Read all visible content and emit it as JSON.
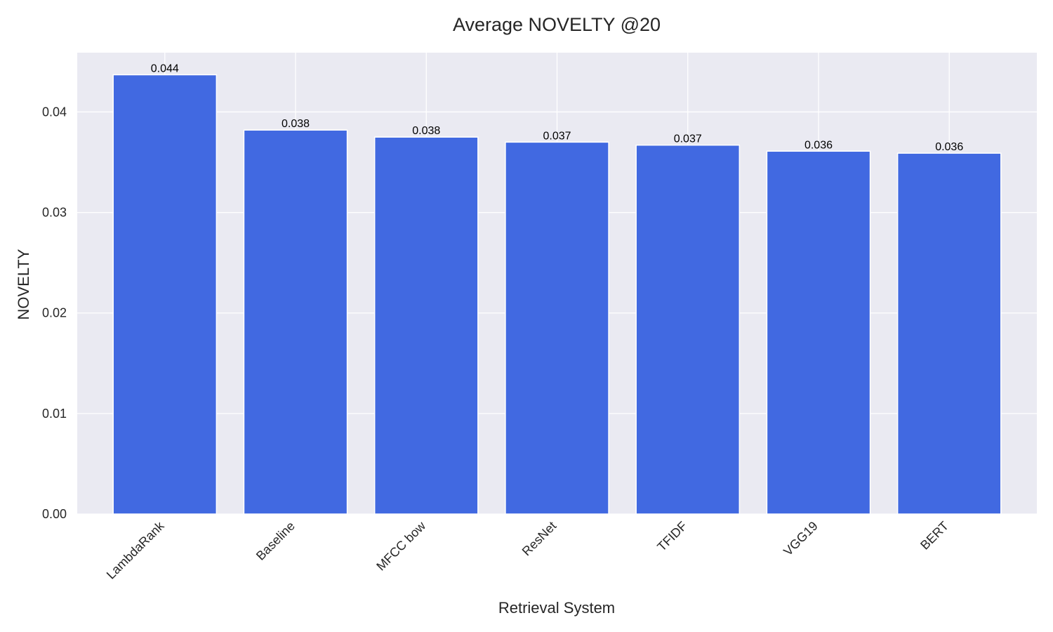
{
  "chart_data": {
    "type": "bar",
    "title": "Average NOVELTY @20",
    "xlabel": "Retrieval System",
    "ylabel": "NOVELTY",
    "categories": [
      "LambdaRank",
      "Baseline",
      "MFCC bow",
      "ResNet",
      "TFIDF",
      "VGG19",
      "BERT"
    ],
    "values": [
      0.0437,
      0.0382,
      0.0375,
      0.037,
      0.0367,
      0.0361,
      0.0359
    ],
    "value_labels": [
      "0.044",
      "0.038",
      "0.038",
      "0.037",
      "0.037",
      "0.036",
      "0.036"
    ],
    "ylim": [
      0,
      0.0459
    ],
    "yticks": [
      0,
      0.01,
      0.02,
      0.03,
      0.04
    ],
    "ytick_labels": [
      "0.00",
      "0.01",
      "0.02",
      "0.03",
      "0.04"
    ],
    "grid": true,
    "colors": {
      "bar": "#4169e1",
      "plot_background": "#eaeaf2",
      "grid": "#ffffff"
    }
  }
}
